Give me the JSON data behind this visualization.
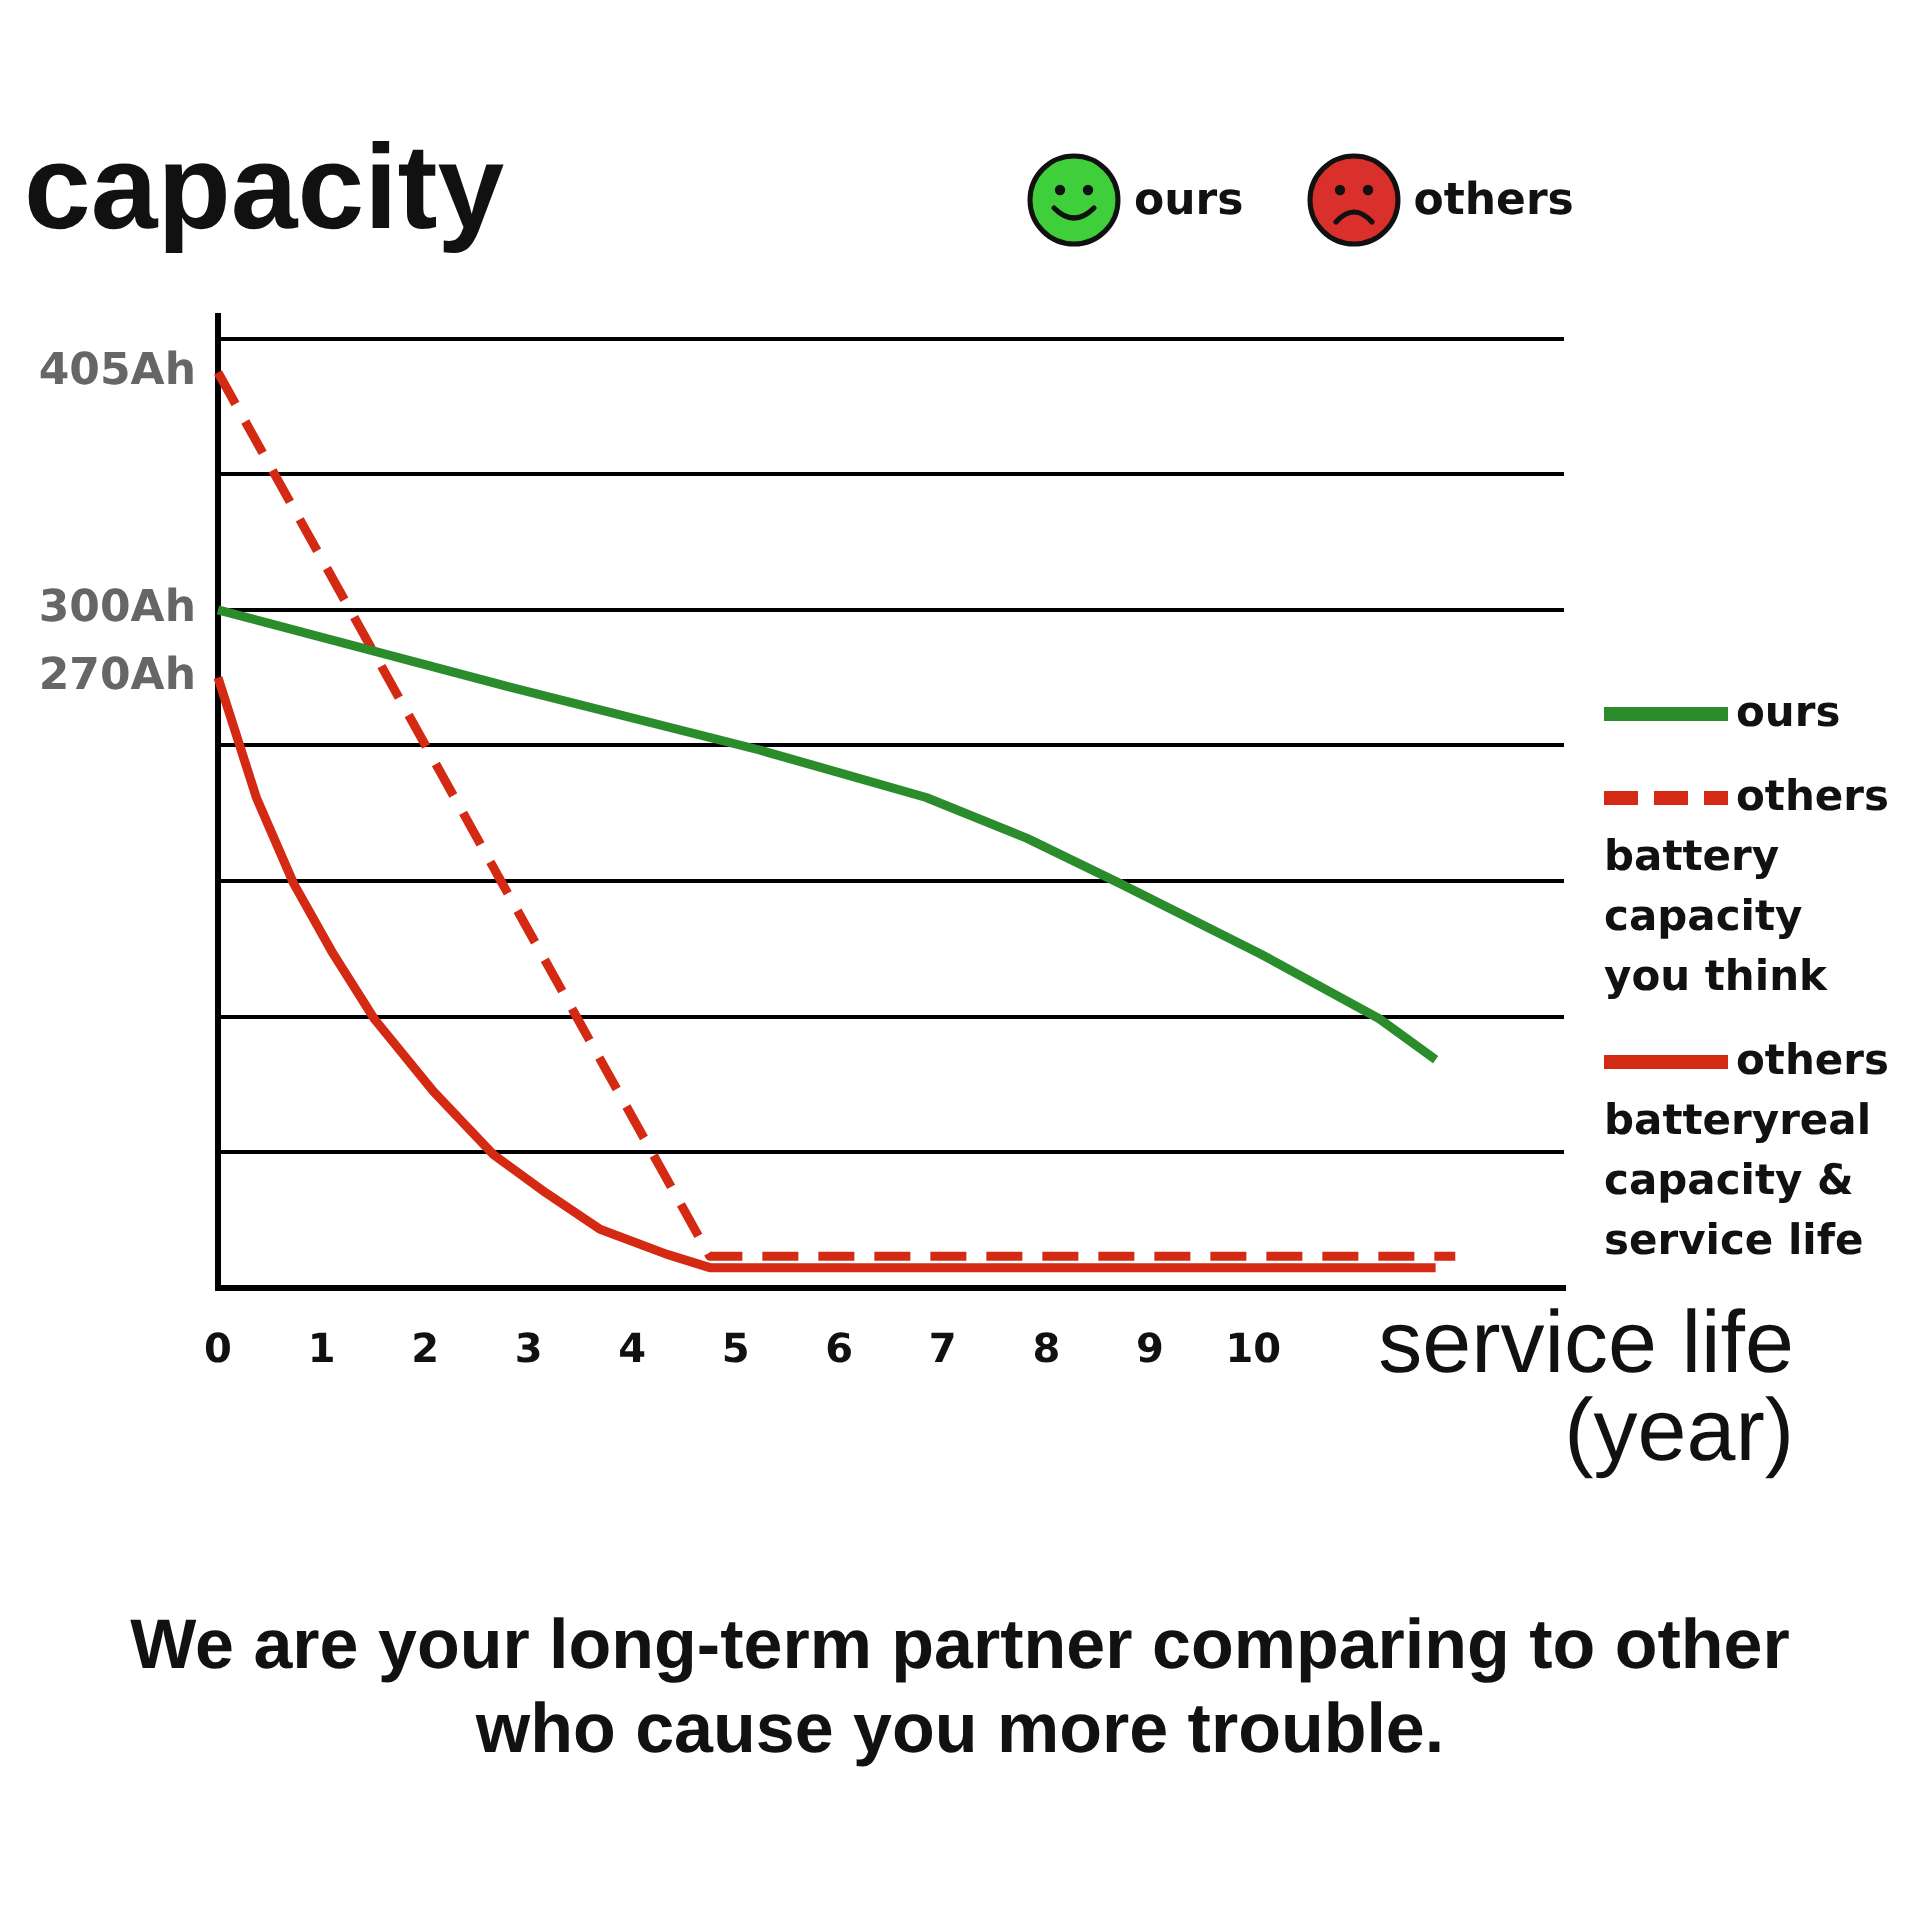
{
  "chart_data": {
    "type": "line",
    "title": "We are your long-term partner comparing to other who cause you more trouble.",
    "ylabel": "capacity",
    "xlabel": "service life (year)",
    "annotations": [
      "ours",
      "others"
    ],
    "xlim": [
      0,
      13
    ],
    "xticks": [
      0,
      1,
      2,
      3,
      4,
      5,
      6,
      7,
      8,
      9,
      10
    ],
    "ylim": [
      0,
      430
    ],
    "yticks": [
      {
        "value": 60,
        "label": null
      },
      {
        "value": 120,
        "label": null
      },
      {
        "value": 180,
        "label": null
      },
      {
        "value": 240,
        "label": null
      },
      {
        "value": 270,
        "label": "270Ah"
      },
      {
        "value": 300,
        "label": null
      },
      {
        "value": 300,
        "label": "300Ah"
      },
      {
        "value": 360,
        "label": null
      },
      {
        "value": 405,
        "label": "405Ah"
      },
      {
        "value": 420,
        "label": null
      }
    ],
    "grid": "y",
    "legend": "right",
    "series": [
      {
        "name": "ours",
        "color": "#2b8c2b",
        "line_style": "solid",
        "x": [
          0,
          2.72,
          5.23,
          6.84,
          7.81,
          8.71,
          10.06,
          11.22,
          11.76
        ],
        "values": [
          300,
          267,
          238,
          217,
          199,
          179,
          148,
          119,
          101
        ]
      },
      {
        "name": "others battery capacity you think",
        "color": "#d42a14",
        "line_style": "dashed",
        "x": [
          0,
          4.75,
          11.95
        ],
        "values": [
          405,
          14,
          14
        ]
      },
      {
        "name": "others batteryreal capacity & service life",
        "color": "#d42a14",
        "line_style": "solid",
        "x": [
          0,
          0.37,
          0.73,
          1.11,
          1.51,
          2.08,
          2.66,
          3.17,
          3.69,
          4.33,
          4.75,
          11.76
        ],
        "values": [
          270,
          217,
          179,
          148,
          119,
          87,
          59,
          42,
          26,
          15,
          9,
          9
        ]
      }
    ]
  }
}
